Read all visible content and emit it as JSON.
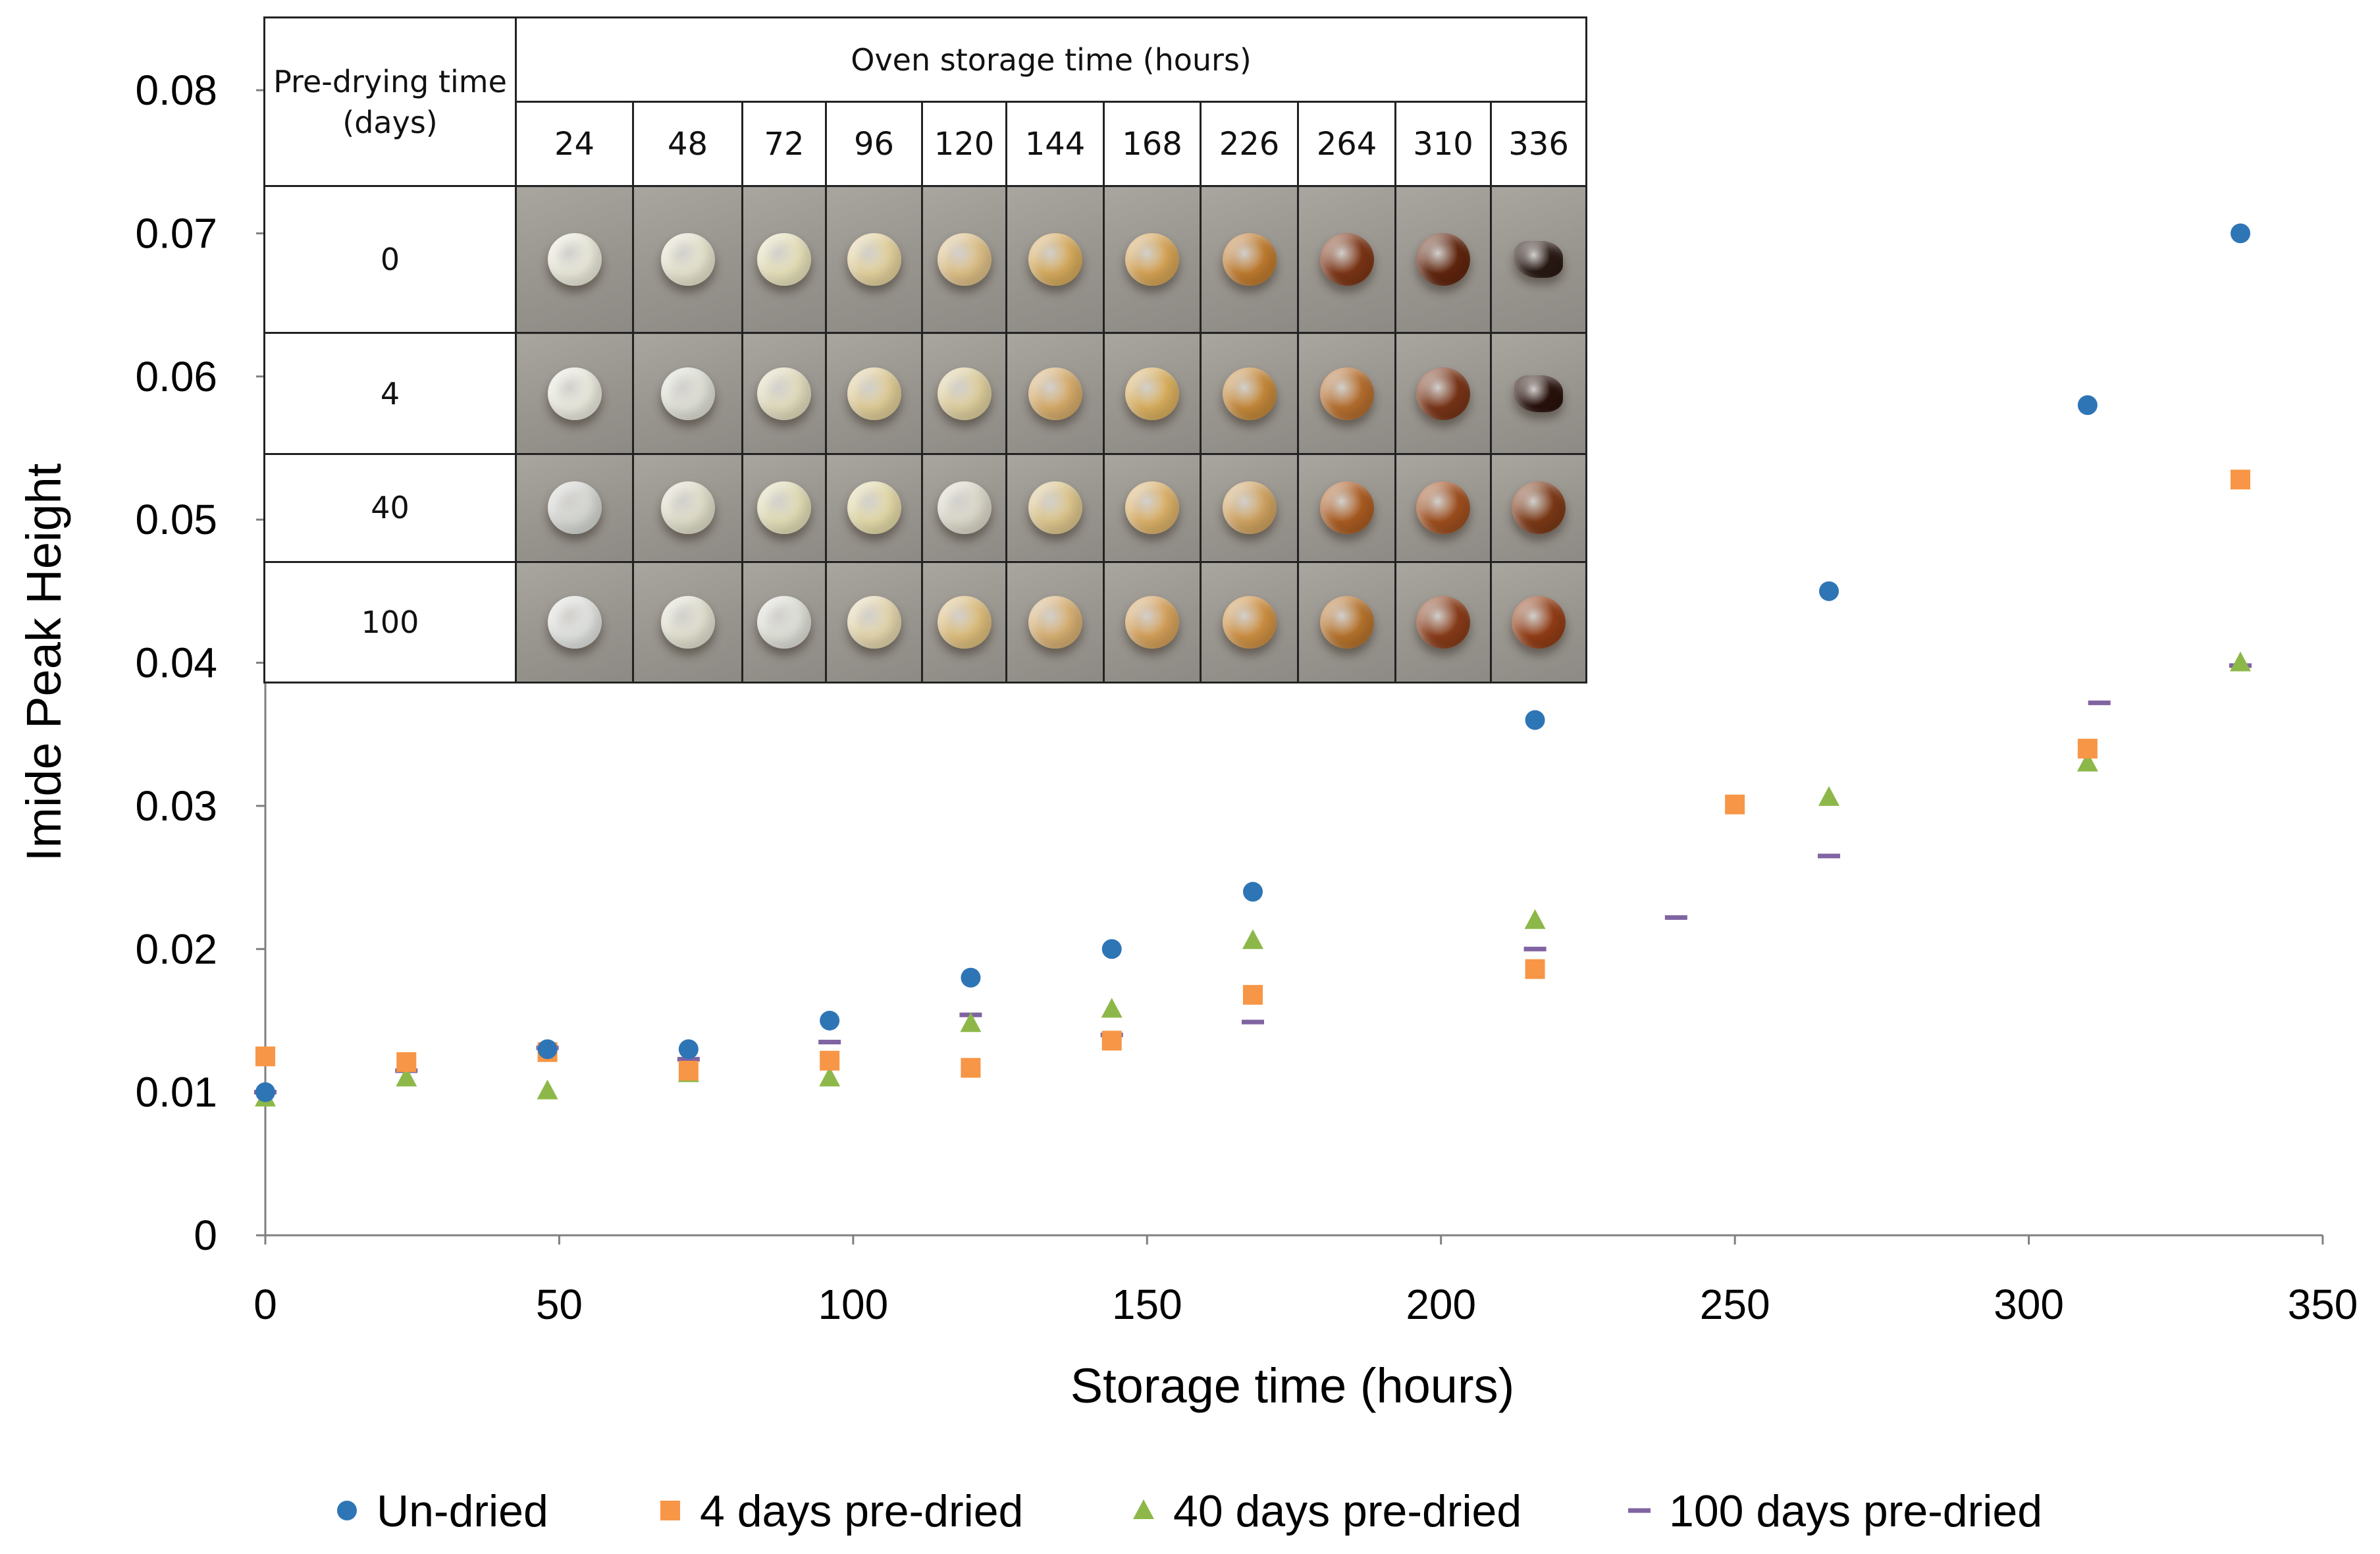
{
  "chart_data": {
    "type": "scatter",
    "title": "",
    "xlabel": "Storage time (hours)",
    "ylabel": "Imide Peak Height",
    "xlim": [
      0,
      350
    ],
    "ylim": [
      0,
      0.08
    ],
    "x_ticks": [
      "0",
      "50",
      "100",
      "150",
      "200",
      "250",
      "300",
      "350"
    ],
    "y_ticks": [
      "0",
      "0.01",
      "0.02",
      "0.03",
      "0.04",
      "0.05",
      "0.06",
      "0.07",
      "0.08"
    ],
    "legend_position": "bottom",
    "series": [
      {
        "name": "Un-dried",
        "marker": "circle",
        "color": "#2e75b6",
        "points": [
          [
            0,
            0.01
          ],
          [
            48,
            0.013
          ],
          [
            72,
            0.013
          ],
          [
            96,
            0.015
          ],
          [
            120,
            0.018
          ],
          [
            144,
            0.02
          ],
          [
            168,
            0.024
          ],
          [
            216,
            0.036
          ],
          [
            266,
            0.045
          ],
          [
            310,
            0.058
          ],
          [
            336,
            0.07
          ]
        ]
      },
      {
        "name": "4 days pre-dried",
        "marker": "square",
        "color": "#f79646",
        "points": [
          [
            0,
            0.0125
          ],
          [
            24,
            0.0121
          ],
          [
            48,
            0.0128
          ],
          [
            72,
            0.0115
          ],
          [
            96,
            0.0122
          ],
          [
            120,
            0.0117
          ],
          [
            144,
            0.0136
          ],
          [
            168,
            0.0168
          ],
          [
            216,
            0.0186
          ],
          [
            250,
            0.0301
          ],
          [
            310,
            0.034
          ],
          [
            336,
            0.0528
          ]
        ]
      },
      {
        "name": "40 days pre-dried",
        "marker": "triangle",
        "color": "#8db849",
        "points": [
          [
            0,
            0.0096
          ],
          [
            24,
            0.011
          ],
          [
            48,
            0.0101
          ],
          [
            72,
            0.0113
          ],
          [
            96,
            0.011
          ],
          [
            120,
            0.0148
          ],
          [
            144,
            0.0158
          ],
          [
            168,
            0.0206
          ],
          [
            216,
            0.022
          ],
          [
            266,
            0.0306
          ],
          [
            310,
            0.033
          ],
          [
            336,
            0.04
          ]
        ]
      },
      {
        "name": "100 days pre-dried",
        "marker": "dash",
        "color": "#8064a2",
        "points": [
          [
            0,
            0.01
          ],
          [
            24,
            0.0115
          ],
          [
            48,
            0.0131
          ],
          [
            72,
            0.0123
          ],
          [
            96,
            0.0135
          ],
          [
            120,
            0.0154
          ],
          [
            144,
            0.014
          ],
          [
            168,
            0.0149
          ],
          [
            216,
            0.02
          ],
          [
            240,
            0.0222
          ],
          [
            266,
            0.0265
          ],
          [
            312,
            0.0372
          ],
          [
            336,
            0.0398
          ]
        ]
      }
    ]
  },
  "inset": {
    "corner_label": "Pre-drying time (days)",
    "header_label": "Oven storage time (hours)",
    "columns": [
      "24",
      "48",
      "72",
      "96",
      "120",
      "144",
      "168",
      "226",
      "264",
      "310",
      "336"
    ],
    "rows": [
      {
        "label": "0",
        "samples": [
          "#ecebdc",
          "#e8e6cf",
          "#e9e3bb",
          "#e6d49f",
          "#e0c288",
          "#d9ad5e",
          "#d8a656",
          "#c27d2f",
          "#7e3616",
          "#62260e",
          "#2a1a14"
        ]
      },
      {
        "label": "4",
        "samples": [
          "#ecece0",
          "#e1e2d8",
          "#e5dfbf",
          "#e2cf99",
          "#e2d2a0",
          "#d9ae6c",
          "#ddb25f",
          "#c88b3b",
          "#b8702f",
          "#7a3518",
          "#2a120c"
        ]
      },
      {
        "label": "40",
        "samples": [
          "#d8dad6",
          "#e2e0cb",
          "#e4e0b8",
          "#e6dcaa",
          "#dedbcc",
          "#e0c88e",
          "#deb36a",
          "#d3a562",
          "#ad5d22",
          "#a1501f",
          "#7e3a17"
        ]
      },
      {
        "label": "100",
        "samples": [
          "#e3e5e2",
          "#e4e3d2",
          "#e1e2da",
          "#e6d8ae",
          "#e0c07e",
          "#dab274",
          "#d8a35c",
          "#d19244",
          "#b9752d",
          "#8b3d1a",
          "#943e16"
        ]
      }
    ]
  }
}
